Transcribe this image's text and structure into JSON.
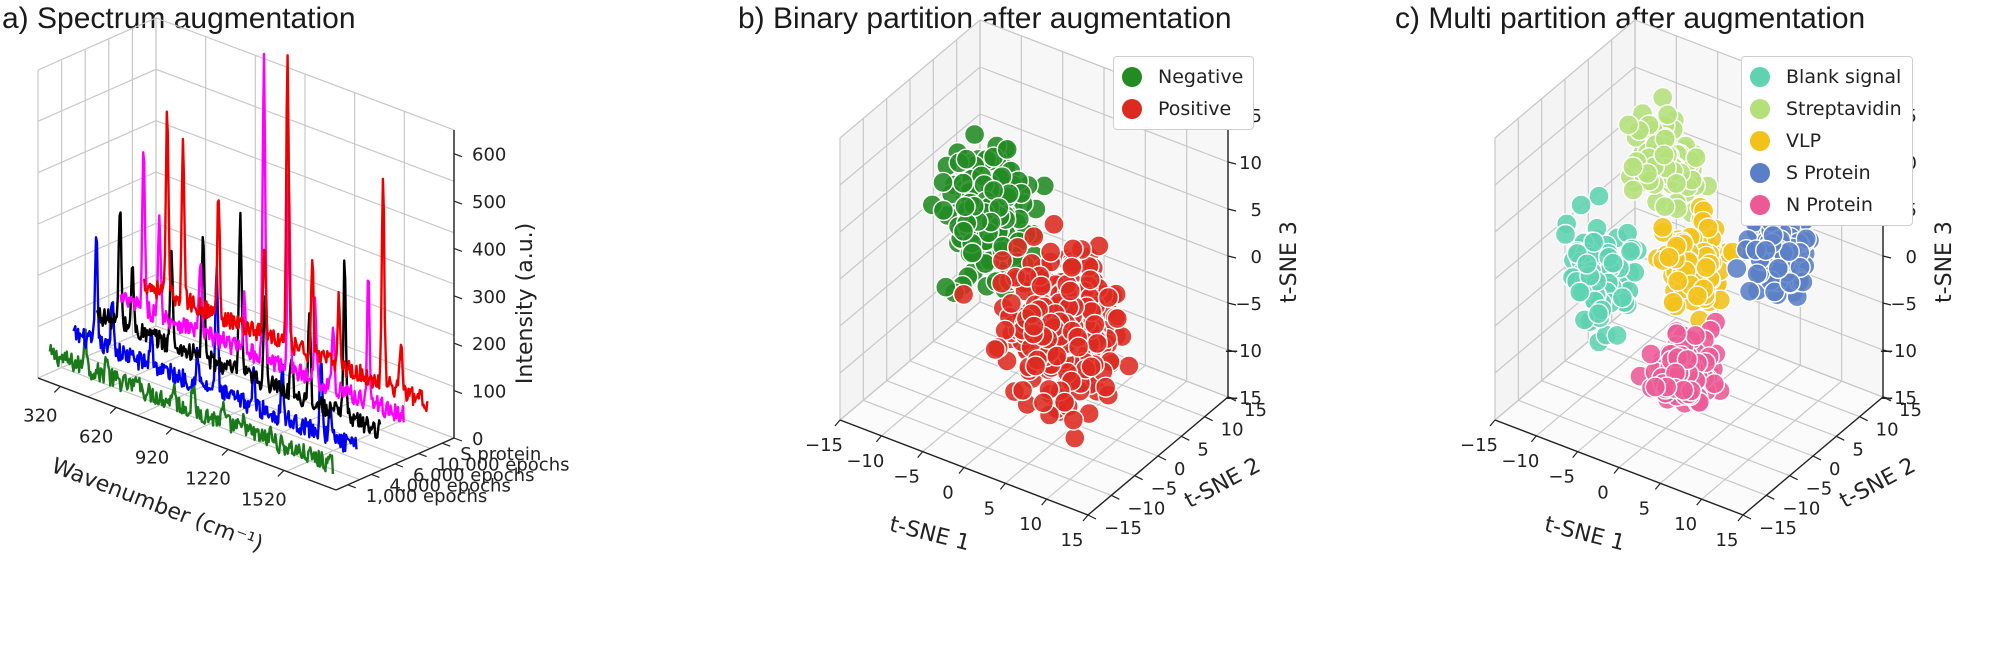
{
  "chart_data": [
    {
      "panel": "a",
      "type": "line",
      "title": "a) Spectrum augmentation",
      "xlabel": "Wavenumber (cm⁻¹)",
      "ylabel": "",
      "zlabel": "Intensity (a.u.)",
      "x_ticks": [
        "320",
        "620",
        "920",
        "1220",
        "1520"
      ],
      "z_ticks": [
        "0",
        "100",
        "200",
        "300",
        "400",
        "500",
        "600"
      ],
      "x_range": [
        200,
        1800
      ],
      "z_range": [
        0,
        650
      ],
      "series": [
        {
          "name": "1,000 epochs",
          "color": "#1a7a1a",
          "peaks": [
            [
              400,
              90
            ],
            [
              520,
              45
            ],
            [
              700,
              35
            ],
            [
              900,
              40
            ],
            [
              1010,
              50
            ],
            [
              1180,
              30
            ],
            [
              1300,
              25
            ],
            [
              1450,
              20
            ]
          ],
          "baseline": 40
        },
        {
          "name": "4,000 epochs",
          "color": "#0000ee",
          "peaks": [
            [
              330,
              220
            ],
            [
              420,
              120
            ],
            [
              640,
              80
            ],
            [
              900,
              70
            ],
            [
              1010,
              270
            ],
            [
              1220,
              80
            ],
            [
              1380,
              120
            ],
            [
              1600,
              170
            ],
            [
              1650,
              60
            ]
          ],
          "baseline": 60
        },
        {
          "name": "6,000 epochs",
          "color": "#000000",
          "peaks": [
            [
              330,
              250
            ],
            [
              400,
              130
            ],
            [
              620,
              200
            ],
            [
              800,
              270
            ],
            [
              1010,
              340
            ],
            [
              1150,
              200
            ],
            [
              1300,
              90
            ],
            [
              1400,
              190
            ],
            [
              1600,
              330
            ]
          ],
          "baseline": 80
        },
        {
          "name": "10,000 epochs",
          "color": "#ff00ff",
          "peaks": [
            [
              330,
              340
            ],
            [
              420,
              210
            ],
            [
              650,
              150
            ],
            [
              900,
              120
            ],
            [
              1010,
              640
            ],
            [
              1150,
              420
            ],
            [
              1300,
              160
            ],
            [
              1400,
              120
            ],
            [
              1600,
              260
            ]
          ],
          "baseline": 90
        },
        {
          "name": "S protein",
          "color": "#ee0000",
          "peaks": [
            [
              330,
              380
            ],
            [
              420,
              330
            ],
            [
              620,
              260
            ],
            [
              880,
              190
            ],
            [
              1010,
              600
            ],
            [
              1150,
              200
            ],
            [
              1300,
              150
            ],
            [
              1550,
              430
            ],
            [
              1650,
              110
            ]
          ],
          "baseline": 100
        }
      ]
    },
    {
      "panel": "b",
      "type": "scatter",
      "title": "b) Binary partition after augmentation",
      "xlabel": "t-SNE 1",
      "ylabel": "t-SNE 2",
      "zlabel": "t-SNE 3",
      "x_ticks": [
        "−15",
        "−10",
        "−5",
        "0",
        "5",
        "10",
        "15"
      ],
      "y_ticks": [
        "−15",
        "−10",
        "−5",
        "0",
        "5",
        "10",
        "15"
      ],
      "z_ticks": [
        "−15",
        "−10",
        "−5",
        "0",
        "5",
        "10",
        "15"
      ],
      "range": [
        -15,
        15
      ],
      "legend_position": "top-right",
      "series": [
        {
          "name": "Negative",
          "color": "#228b22",
          "center": [
            -7,
            3,
            2
          ],
          "spread": [
            3.5,
            3,
            6
          ],
          "count": 220
        },
        {
          "name": "Positive",
          "color": "#dd2a20",
          "center": [
            5,
            -3,
            -3
          ],
          "spread": [
            4.5,
            5,
            6
          ],
          "count": 330
        }
      ]
    },
    {
      "panel": "c",
      "type": "scatter",
      "title": "c) Multi partition after augmentation",
      "xlabel": "t-SNE 1",
      "ylabel": "t-SNE 2",
      "zlabel": "t-SNE 3",
      "x_ticks": [
        "−15",
        "−10",
        "−5",
        "0",
        "5",
        "10",
        "15"
      ],
      "y_ticks": [
        "−15",
        "−10",
        "−5",
        "0",
        "5",
        "10",
        "15"
      ],
      "z_ticks": [
        "−15",
        "−10",
        "−5",
        "0",
        "5",
        "10",
        "15"
      ],
      "range": [
        -15,
        15
      ],
      "legend_position": "top-right",
      "series": [
        {
          "name": "Blank signal",
          "color": "#5fd3b0",
          "center": [
            -10,
            -2,
            -3
          ],
          "spread": [
            2.5,
            3,
            5
          ],
          "count": 110
        },
        {
          "name": "Streptavidin",
          "color": "#b4e07a",
          "center": [
            -5,
            4,
            8
          ],
          "spread": [
            3,
            3,
            3.5
          ],
          "count": 110
        },
        {
          "name": "VLP",
          "color": "#f2c21b",
          "center": [
            0,
            1,
            0
          ],
          "spread": [
            2.5,
            3,
            4
          ],
          "count": 110
        },
        {
          "name": "S Protein",
          "color": "#5b7fc7",
          "center": [
            8,
            5,
            2
          ],
          "spread": [
            2.5,
            3,
            4
          ],
          "count": 110
        },
        {
          "name": "N Protein",
          "color": "#ec5a96",
          "center": [
            3,
            -6,
            -7
          ],
          "spread": [
            2.5,
            3,
            3.5
          ],
          "count": 110
        }
      ]
    }
  ]
}
